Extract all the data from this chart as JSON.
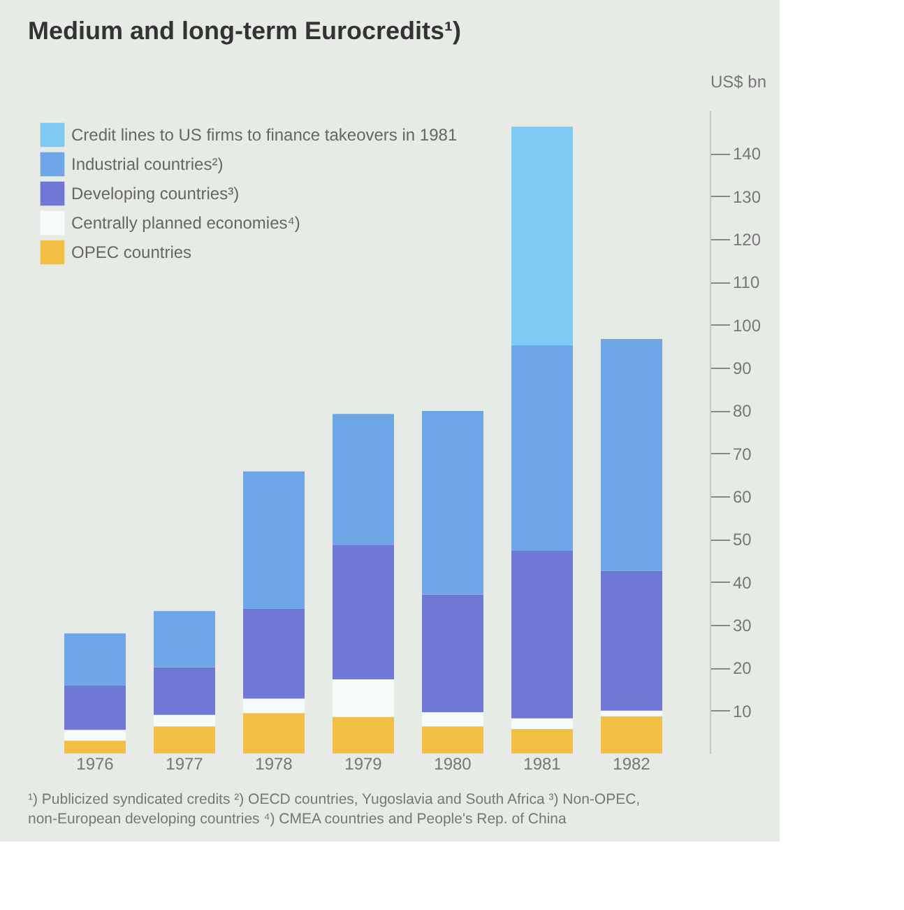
{
  "chart_data": {
    "type": "bar",
    "stacked": true,
    "title": "Medium and long-term Eurocredits¹)",
    "ylabel": "US$ bn",
    "categories": [
      "1976",
      "1977",
      "1978",
      "1979",
      "1980",
      "1981",
      "1982"
    ],
    "series": [
      {
        "name": "OPEC countries",
        "color": "#f2bf45",
        "values": [
          3.0,
          6.3,
          9.4,
          8.5,
          6.3,
          5.7,
          8.7
        ]
      },
      {
        "name": "Centrally planned economies⁴)",
        "color": "#f7fafa",
        "values": [
          2.5,
          2.7,
          3.4,
          8.8,
          3.3,
          2.5,
          1.3
        ]
      },
      {
        "name": "Developing countries³)",
        "color": "#7078d6",
        "values": [
          10.3,
          11.1,
          21.0,
          31.4,
          27.5,
          39.2,
          32.6
        ]
      },
      {
        "name": "Industrial countries²)",
        "color": "#6ea6e8",
        "values": [
          12.2,
          13.1,
          32.0,
          30.5,
          42.8,
          47.9,
          54.1
        ]
      },
      {
        "name": "Credit lines to US firms to finance takeovers in 1981",
        "color": "#80c9f2",
        "values": [
          null,
          null,
          null,
          null,
          null,
          50.9,
          null
        ]
      }
    ],
    "ylim": [
      0,
      150
    ],
    "yticks": [
      10,
      20,
      30,
      40,
      50,
      60,
      70,
      80,
      90,
      100,
      110,
      120,
      130,
      140
    ],
    "legend": "top left",
    "grid": false,
    "annotations": [
      "¹) Publicized syndicated credits ²) OECD countries, Yugoslavia and South Africa ³) Non-OPEC, non-European developing countries ⁴) CMEA countries and People's Rep. of China"
    ]
  }
}
